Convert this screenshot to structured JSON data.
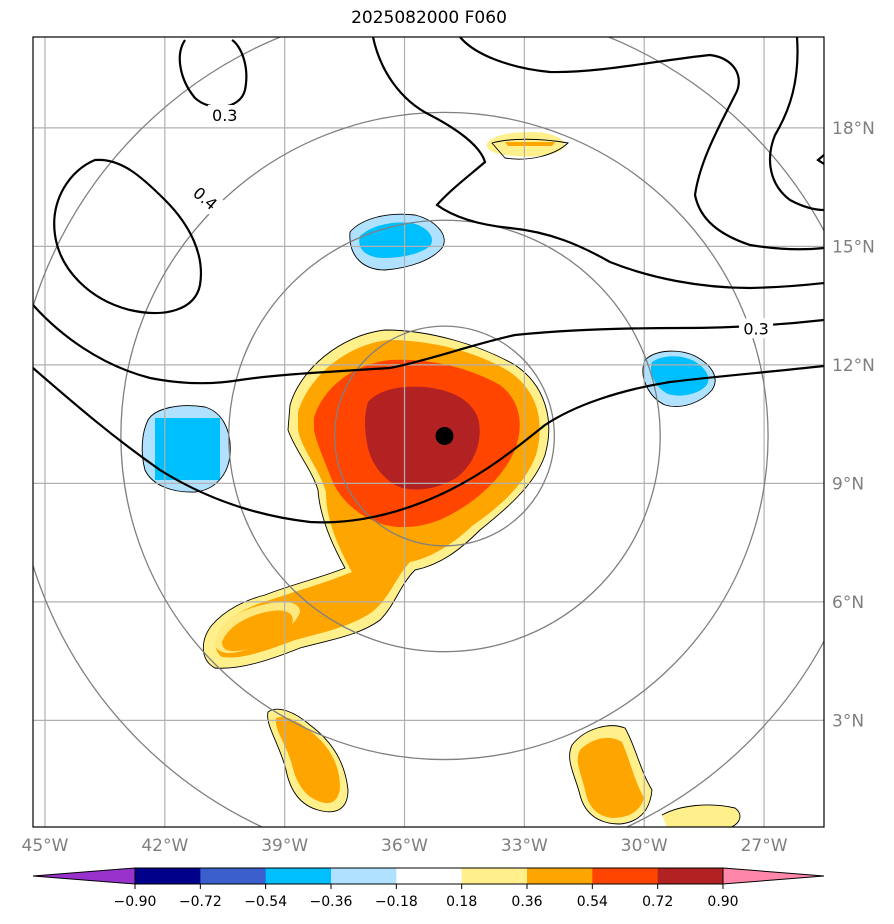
{
  "title": "2025082000 F060",
  "map": {
    "lon_range": [
      -45.3,
      -25.5
    ],
    "lat_range": [
      0.3,
      20.3
    ],
    "lon_ticks": [
      {
        "value": -45,
        "label": "45°W"
      },
      {
        "value": -42,
        "label": "42°W"
      },
      {
        "value": -39,
        "label": "39°W"
      },
      {
        "value": -36,
        "label": "36°W"
      },
      {
        "value": -33,
        "label": "33°W"
      },
      {
        "value": -30,
        "label": "30°W"
      },
      {
        "value": -27,
        "label": "27°W"
      }
    ],
    "lat_ticks": [
      {
        "value": 3,
        "label": "3°N"
      },
      {
        "value": 6,
        "label": "6°N"
      },
      {
        "value": 9,
        "label": "9°N"
      },
      {
        "value": 12,
        "label": "12°N"
      },
      {
        "value": 15,
        "label": "15°N"
      },
      {
        "value": 18,
        "label": "18°N"
      }
    ],
    "storm_center": {
      "lon": -35.0,
      "lat": 10.2
    },
    "range_rings_deg": [
      2.75,
      5.4,
      8.1,
      10.8
    ],
    "contour_labels": [
      {
        "text": "0.3",
        "lon": -40.5,
        "lat": 18.3
      },
      {
        "text": "0.4",
        "lon": -41.0,
        "lat": 16.2,
        "rotate": 40
      },
      {
        "text": "0.3",
        "lon": -27.2,
        "lat": 12.9
      }
    ]
  },
  "colorbar": {
    "ticks": [
      "−0.90",
      "−0.72",
      "−0.54",
      "−0.36",
      "−0.18",
      "0.18",
      "0.36",
      "0.54",
      "0.72",
      "0.90"
    ],
    "colors": [
      "#9932cc",
      "#00008b",
      "#3a5fcd",
      "#00bfff",
      "#b0e2ff",
      "#ffffff",
      "#fff08c",
      "#ffa500",
      "#ff4500",
      "#b22222",
      "#ff88aa"
    ]
  }
}
